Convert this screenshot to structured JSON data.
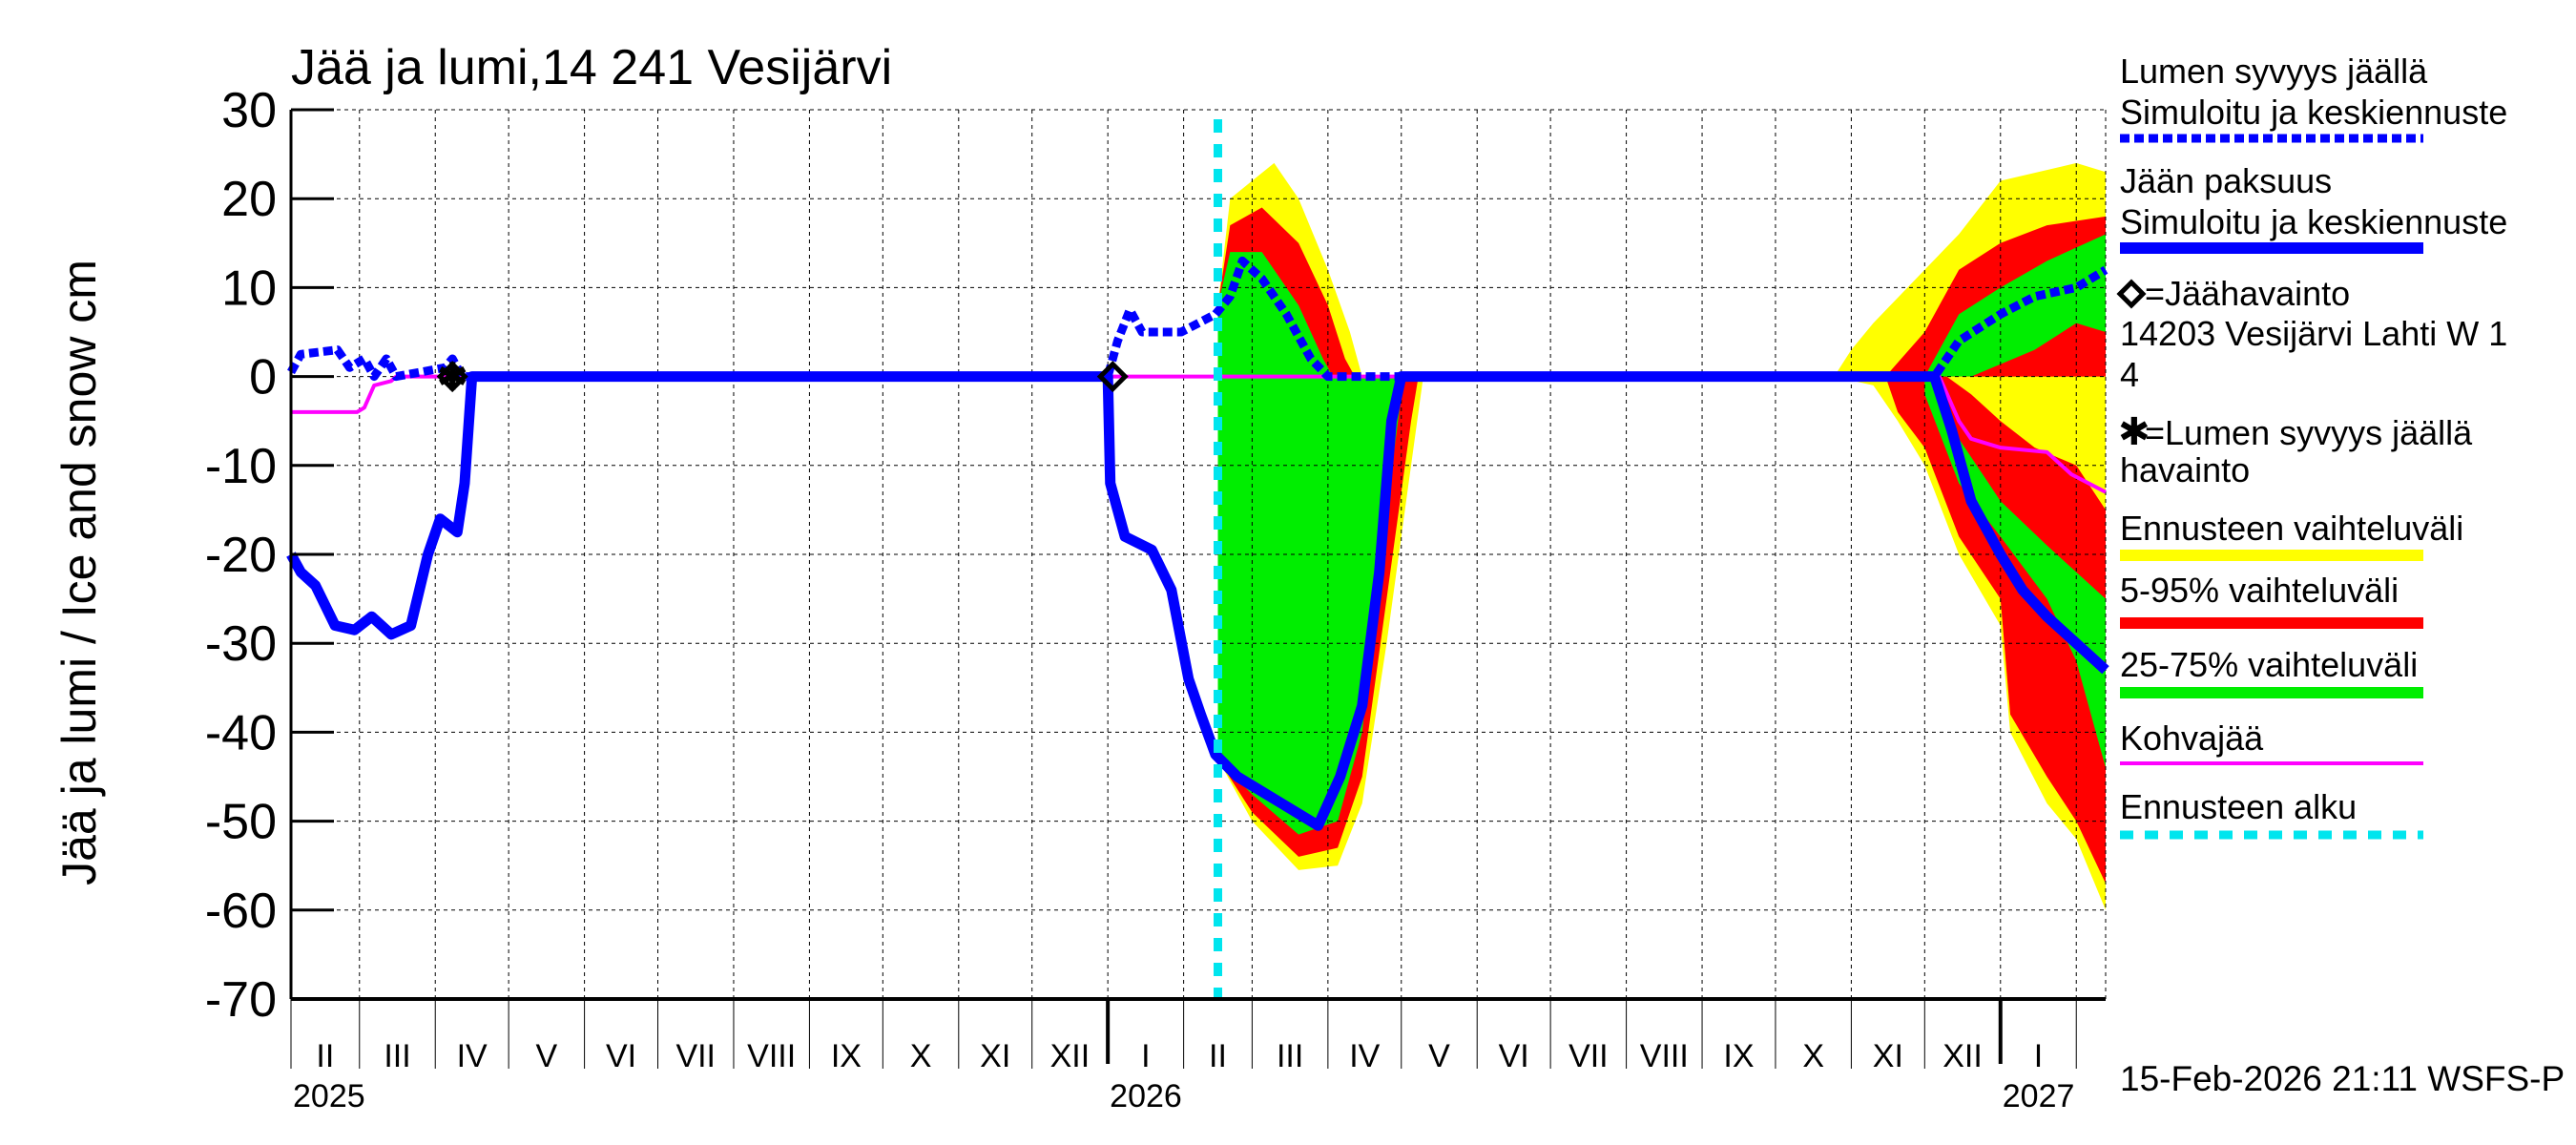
{
  "chart_data": {
    "type": "line",
    "title": "Jää ja lumi,14 241 Vesijärvi",
    "ylabel": "Jää ja lumi / Ice and snow    cm",
    "ylim": [
      -70,
      30
    ],
    "yticks": [
      30,
      20,
      10,
      0,
      -10,
      -20,
      -30,
      -40,
      -50,
      -60,
      -70
    ],
    "xlim": [
      "2025-02-01",
      "2027-02-13"
    ],
    "grid": true,
    "legend_placement": "right",
    "month_labels": [
      "II",
      "III",
      "IV",
      "V",
      "VI",
      "VII",
      "VIII",
      "IX",
      "X",
      "XI",
      "XII",
      "I",
      "II",
      "III",
      "IV",
      "V",
      "VI",
      "VII",
      "VIII",
      "IX",
      "X",
      "XI",
      "XII",
      "I"
    ],
    "year_labels": [
      {
        "label": "2025",
        "date": "2025-02-01"
      },
      {
        "label": "2026",
        "date": "2026-01-01"
      },
      {
        "label": "2027",
        "date": "2027-01-01"
      }
    ],
    "forecast_start": "2026-02-15",
    "timestamp": "15-Feb-2026 21:11 WSFS-P",
    "colors": {
      "snow": "#0000ff",
      "ice": "#0000ff",
      "minmax": "#ffff00",
      "p5_95": "#ff0000",
      "p25_75": "#00ee00",
      "kohva": "#ff00ff",
      "forecast": "#00e5ee",
      "obs": "#000000"
    },
    "bands": [
      {
        "name": "Ennusteen vaihteluväli",
        "color": "#ffff00",
        "upper": [
          [
            "2026-02-15",
            8
          ],
          [
            "2026-02-20",
            20
          ],
          [
            "2026-03-01",
            22
          ],
          [
            "2026-03-10",
            24
          ],
          [
            "2026-03-20",
            20
          ],
          [
            "2026-04-01",
            12
          ],
          [
            "2026-04-10",
            5
          ],
          [
            "2026-04-15",
            0
          ]
        ],
        "lower": [
          [
            "2026-02-15",
            -43
          ],
          [
            "2026-03-01",
            -50
          ],
          [
            "2026-03-20",
            -55.5
          ],
          [
            "2026-04-05",
            -55
          ],
          [
            "2026-04-15",
            -48
          ],
          [
            "2026-04-25",
            -30
          ],
          [
            "2026-05-05",
            -10
          ],
          [
            "2026-05-10",
            0
          ]
        ]
      },
      {
        "name": "5-95% vaihteluväli",
        "color": "#ff0000",
        "upper": [
          [
            "2026-02-15",
            8
          ],
          [
            "2026-02-20",
            17
          ],
          [
            "2026-03-05",
            19
          ],
          [
            "2026-03-20",
            15
          ],
          [
            "2026-04-01",
            8
          ],
          [
            "2026-04-08",
            2
          ],
          [
            "2026-04-12",
            0
          ]
        ],
        "lower": [
          [
            "2026-02-15",
            -43
          ],
          [
            "2026-03-01",
            -49
          ],
          [
            "2026-03-20",
            -54
          ],
          [
            "2026-04-05",
            -53
          ],
          [
            "2026-04-15",
            -45
          ],
          [
            "2026-04-25",
            -25
          ],
          [
            "2026-05-05",
            -5
          ],
          [
            "2026-05-08",
            0
          ]
        ]
      },
      {
        "name": "25-75% vaihteluväli",
        "color": "#00ee00",
        "upper": [
          [
            "2026-02-15",
            8
          ],
          [
            "2026-02-20",
            14
          ],
          [
            "2026-03-05",
            14
          ],
          [
            "2026-03-20",
            8
          ],
          [
            "2026-03-30",
            2
          ],
          [
            "2026-04-03",
            0
          ]
        ],
        "lower": [
          [
            "2026-02-15",
            -43
          ],
          [
            "2026-03-01",
            -47
          ],
          [
            "2026-03-20",
            -51.5
          ],
          [
            "2026-04-05",
            -50
          ],
          [
            "2026-04-15",
            -40
          ],
          [
            "2026-04-25",
            -15
          ],
          [
            "2026-05-02",
            0
          ]
        ]
      },
      {
        "name": "Ennusteen vaihteluväli",
        "color": "#ffff00",
        "upper": [
          [
            "2026-10-25",
            0
          ],
          [
            "2026-11-01",
            3
          ],
          [
            "2026-11-10",
            6
          ],
          [
            "2026-12-01",
            12
          ],
          [
            "2026-12-15",
            16
          ],
          [
            "2027-01-01",
            22
          ],
          [
            "2027-02-01",
            24
          ],
          [
            "2027-02-13",
            23
          ]
        ],
        "lower": [
          [
            "2026-11-10",
            -1
          ],
          [
            "2026-11-20",
            -5
          ],
          [
            "2026-12-01",
            -10
          ],
          [
            "2026-12-15",
            -20
          ],
          [
            "2027-01-01",
            -28
          ],
          [
            "2027-01-05",
            -40
          ],
          [
            "2027-01-20",
            -48
          ],
          [
            "2027-02-01",
            -52
          ],
          [
            "2027-02-13",
            -60
          ]
        ]
      },
      {
        "name": "5-95% vaihteluväli",
        "color": "#ff0000",
        "upper": [
          [
            "2026-11-15",
            0
          ],
          [
            "2026-12-01",
            5
          ],
          [
            "2026-12-15",
            12
          ],
          [
            "2027-01-01",
            15
          ],
          [
            "2027-01-20",
            17
          ],
          [
            "2027-02-13",
            18
          ]
        ],
        "lower": [
          [
            "2026-11-20",
            -4
          ],
          [
            "2026-12-01",
            -8
          ],
          [
            "2026-12-15",
            -18
          ],
          [
            "2027-01-01",
            -25
          ],
          [
            "2027-01-05",
            -38
          ],
          [
            "2027-01-20",
            -45
          ],
          [
            "2027-02-01",
            -50
          ],
          [
            "2027-02-13",
            -57
          ]
        ]
      },
      {
        "name": "25-75% vaihteluväli",
        "color": "#00ee00",
        "upper": [
          [
            "2026-12-01",
            0
          ],
          [
            "2026-12-15",
            7
          ],
          [
            "2027-01-01",
            10
          ],
          [
            "2027-01-20",
            13
          ],
          [
            "2027-02-13",
            16
          ]
        ],
        "lower": [
          [
            "2026-12-01",
            -2
          ],
          [
            "2026-12-15",
            -12
          ],
          [
            "2027-01-01",
            -18
          ],
          [
            "2027-01-20",
            -25
          ],
          [
            "2027-02-01",
            -32
          ],
          [
            "2027-02-13",
            -44
          ]
        ]
      },
      {
        "name": "25-75% vaihteluväli",
        "color": "#ff0000",
        "upper": [
          [
            "2026-12-05",
            0
          ],
          [
            "2026-12-20",
            0
          ],
          [
            "2027-01-15",
            3
          ],
          [
            "2027-02-01",
            6
          ],
          [
            "2027-02-13",
            5
          ]
        ],
        "lower": [
          [
            "2026-12-05",
            0
          ],
          [
            "2026-12-15",
            -7
          ],
          [
            "2027-01-01",
            -14
          ],
          [
            "2027-01-20",
            -19
          ],
          [
            "2027-02-01",
            -22
          ],
          [
            "2027-02-13",
            -25
          ]
        ]
      },
      {
        "name": "5-95% vaihteluväli",
        "color": "#ffff00",
        "upper": [
          [
            "2026-12-10",
            0
          ],
          [
            "2027-01-01",
            0
          ],
          [
            "2027-02-13",
            0
          ]
        ],
        "lower": [
          [
            "2026-12-10",
            0
          ],
          [
            "2026-12-20",
            -2
          ],
          [
            "2027-01-01",
            -5
          ],
          [
            "2027-01-15",
            -8
          ],
          [
            "2027-02-01",
            -10
          ],
          [
            "2027-02-13",
            -15
          ]
        ]
      }
    ],
    "series": [
      {
        "name": "Kohvajää",
        "color": "#ff00ff",
        "width": 4,
        "dash": "",
        "points": [
          [
            "2025-02-01",
            -4
          ],
          [
            "2025-02-28",
            -4
          ],
          [
            "2025-03-03",
            -3.5
          ],
          [
            "2025-03-07",
            -1
          ],
          [
            "2025-03-14",
            -0.5
          ],
          [
            "2025-03-16",
            0
          ],
          [
            "2026-12-07",
            0
          ],
          [
            "2026-12-15",
            -5
          ],
          [
            "2026-12-20",
            -7
          ],
          [
            "2027-01-01",
            -8
          ],
          [
            "2027-01-20",
            -8.5
          ],
          [
            "2027-01-30",
            -11
          ],
          [
            "2027-02-13",
            -13
          ]
        ]
      },
      {
        "name": "Jään paksuus",
        "color": "#0000ff",
        "width": 11,
        "dash": "",
        "points": [
          [
            "2025-02-01",
            -20
          ],
          [
            "2025-02-05",
            -22
          ],
          [
            "2025-02-11",
            -23.5
          ],
          [
            "2025-02-19",
            -28
          ],
          [
            "2025-02-27",
            -28.5
          ],
          [
            "2025-03-06",
            -27
          ],
          [
            "2025-03-14",
            -29
          ],
          [
            "2025-03-22",
            -28
          ],
          [
            "2025-03-29",
            -20
          ],
          [
            "2025-04-03",
            -16
          ],
          [
            "2025-04-10",
            -17.5
          ],
          [
            "2025-04-13",
            -12
          ],
          [
            "2025-04-16",
            0
          ],
          [
            "2026-01-01",
            0
          ],
          [
            "2026-01-02",
            -12
          ],
          [
            "2026-01-08",
            -18
          ],
          [
            "2026-01-19",
            -19.5
          ],
          [
            "2026-01-27",
            -24
          ],
          [
            "2026-02-03",
            -34
          ],
          [
            "2026-02-08",
            -38
          ],
          [
            "2026-02-14",
            -42.5
          ],
          [
            "2026-02-23",
            -45
          ],
          [
            "2026-03-13",
            -48
          ],
          [
            "2026-03-28",
            -50.5
          ],
          [
            "2026-04-06",
            -45
          ],
          [
            "2026-04-15",
            -37
          ],
          [
            "2026-04-22",
            -22
          ],
          [
            "2026-04-27",
            -5
          ],
          [
            "2026-05-01",
            0
          ],
          [
            "2026-12-05",
            0
          ],
          [
            "2026-12-12",
            -6
          ],
          [
            "2026-12-20",
            -14
          ],
          [
            "2027-01-01",
            -20
          ],
          [
            "2027-01-10",
            -24
          ],
          [
            "2027-01-20",
            -27
          ],
          [
            "2027-02-01",
            -30
          ],
          [
            "2027-02-13",
            -33
          ]
        ]
      },
      {
        "name": "Lumen syvyys jäällä",
        "color": "#0000ff",
        "width": 9,
        "dash": "10 5",
        "points": [
          [
            "2025-02-01",
            0.5
          ],
          [
            "2025-02-05",
            2.5
          ],
          [
            "2025-02-20",
            3
          ],
          [
            "2025-02-25",
            1
          ],
          [
            "2025-03-03",
            2
          ],
          [
            "2025-03-07",
            0
          ],
          [
            "2025-03-12",
            2
          ],
          [
            "2025-03-16",
            0
          ],
          [
            "2025-04-05",
            1
          ],
          [
            "2025-04-08",
            2
          ],
          [
            "2025-04-12",
            0
          ],
          [
            "2026-01-01",
            0
          ],
          [
            "2026-01-05",
            4
          ],
          [
            "2026-01-10",
            7.5
          ],
          [
            "2026-01-15",
            5
          ],
          [
            "2026-01-31",
            5
          ],
          [
            "2026-02-14",
            7
          ],
          [
            "2026-02-20",
            9
          ],
          [
            "2026-02-25",
            13
          ],
          [
            "2026-03-05",
            11
          ],
          [
            "2026-03-15",
            7
          ],
          [
            "2026-03-25",
            2
          ],
          [
            "2026-04-01",
            0
          ],
          [
            "2026-12-05",
            0
          ],
          [
            "2026-12-15",
            4
          ],
          [
            "2027-01-01",
            7
          ],
          [
            "2027-01-15",
            9
          ],
          [
            "2027-02-01",
            10
          ],
          [
            "2027-02-13",
            12
          ]
        ]
      }
    ],
    "ice_observations": [
      [
        "2025-04-08",
        0
      ],
      [
        "2026-01-03",
        0
      ]
    ],
    "snow_observations": [
      [
        "2025-04-08",
        0
      ]
    ]
  },
  "legend": {
    "snow_title": "Lumen syvyys jäällä",
    "snow_sub": "Simuloitu ja keskiennuste",
    "ice_title": "Jään paksuus",
    "ice_sub": "Simuloitu ja keskiennuste",
    "ice_obs": "=Jäähavainto",
    "ice_obs_station": "14203 Vesijärvi Lahti W 1",
    "ice_obs_station2": "4",
    "snow_obs": "=Lumen syvyys jäällä",
    "snow_obs2": "havainto",
    "minmax": "Ennusteen vaihteluväli",
    "p5_95": "5-95% vaihteluväli",
    "p25_75": "25-75% vaihteluväli",
    "kohva": "Kohvajää",
    "forecast": "Ennusteen alku"
  }
}
